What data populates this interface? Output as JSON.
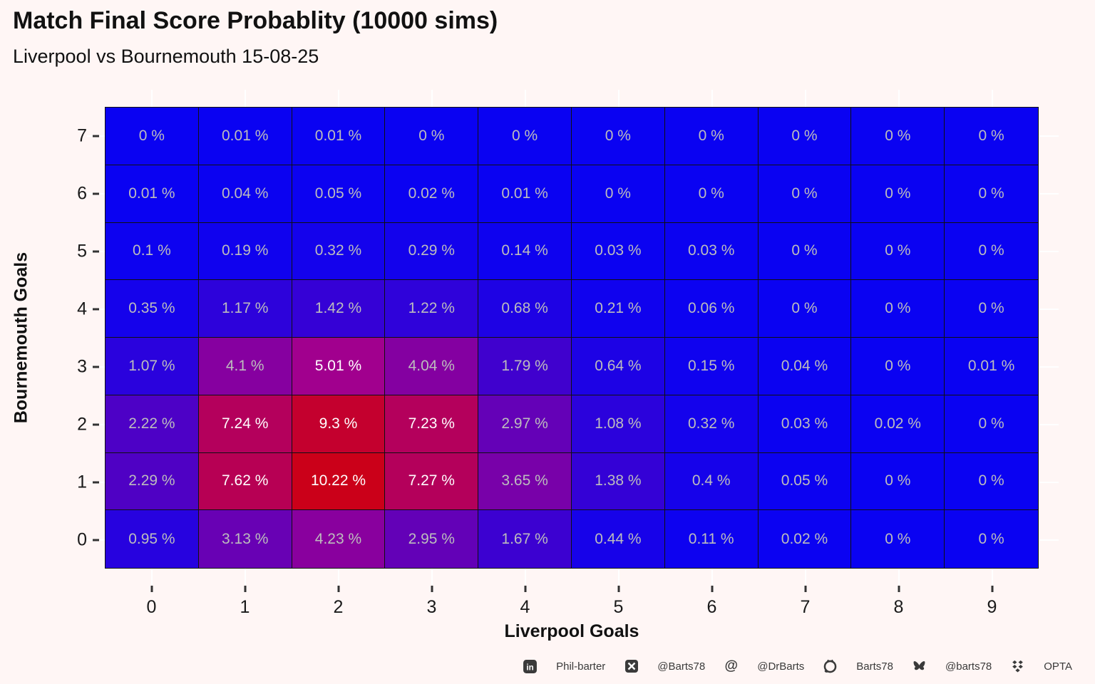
{
  "title": "Match Final Score Probablity (10000 sims)",
  "subtitle": "Liverpool vs Bournemouth 15-08-25",
  "chart_data": {
    "type": "heatmap",
    "title": "Match Final Score Probablity (10000 sims)",
    "subtitle": "Liverpool vs Bournemouth 15-08-25",
    "xlabel": "Liverpool Goals",
    "ylabel": "Bournemouth Goals",
    "x_categories": [
      "0",
      "1",
      "2",
      "3",
      "4",
      "5",
      "6",
      "7",
      "8",
      "9"
    ],
    "y_categories_top_to_bottom": [
      "7",
      "6",
      "5",
      "4",
      "3",
      "2",
      "1",
      "0"
    ],
    "values_unit": "%",
    "rows": [
      {
        "bournemouth_goals": "7",
        "values": [
          0,
          0.01,
          0.01,
          0,
          0,
          0,
          0,
          0,
          0,
          0
        ],
        "labels": [
          "0 %",
          "0.01 %",
          "0.01 %",
          "0 %",
          "0 %",
          "0 %",
          "0 %",
          "0 %",
          "0 %",
          "0 %"
        ]
      },
      {
        "bournemouth_goals": "6",
        "values": [
          0.01,
          0.04,
          0.05,
          0.02,
          0.01,
          0,
          0,
          0,
          0,
          0
        ],
        "labels": [
          "0.01 %",
          "0.04 %",
          "0.05 %",
          "0.02 %",
          "0.01 %",
          "0 %",
          "0 %",
          "0 %",
          "0 %",
          "0 %"
        ]
      },
      {
        "bournemouth_goals": "5",
        "values": [
          0.1,
          0.19,
          0.32,
          0.29,
          0.14,
          0.03,
          0.03,
          0,
          0,
          0
        ],
        "labels": [
          "0.1 %",
          "0.19 %",
          "0.32 %",
          "0.29 %",
          "0.14 %",
          "0.03 %",
          "0.03 %",
          "0 %",
          "0 %",
          "0 %"
        ]
      },
      {
        "bournemouth_goals": "4",
        "values": [
          0.35,
          1.17,
          1.42,
          1.22,
          0.68,
          0.21,
          0.06,
          0,
          0,
          0
        ],
        "labels": [
          "0.35 %",
          "1.17 %",
          "1.42 %",
          "1.22 %",
          "0.68 %",
          "0.21 %",
          "0.06 %",
          "0 %",
          "0 %",
          "0 %"
        ]
      },
      {
        "bournemouth_goals": "3",
        "values": [
          1.07,
          4.1,
          5.01,
          4.04,
          1.79,
          0.64,
          0.15,
          0.04,
          0,
          0.01
        ],
        "labels": [
          "1.07 %",
          "4.1 %",
          "5.01 %",
          "4.04 %",
          "1.79 %",
          "0.64 %",
          "0.15 %",
          "0.04 %",
          "0 %",
          "0.01 %"
        ]
      },
      {
        "bournemouth_goals": "2",
        "values": [
          2.22,
          7.24,
          9.3,
          7.23,
          2.97,
          1.08,
          0.32,
          0.03,
          0.02,
          0
        ],
        "labels": [
          "2.22 %",
          "7.24 %",
          "9.3 %",
          "7.23 %",
          "2.97 %",
          "1.08 %",
          "0.32 %",
          "0.03 %",
          "0.02 %",
          "0 %"
        ]
      },
      {
        "bournemouth_goals": "1",
        "values": [
          2.29,
          7.62,
          10.22,
          7.27,
          3.65,
          1.38,
          0.4,
          0.05,
          0,
          0
        ],
        "labels": [
          "2.29 %",
          "7.62 %",
          "10.22 %",
          "7.27 %",
          "3.65 %",
          "1.38 %",
          "0.4 %",
          "0.05 %",
          "0 %",
          "0 %"
        ]
      },
      {
        "bournemouth_goals": "0",
        "values": [
          0.95,
          3.13,
          4.23,
          2.95,
          1.67,
          0.44,
          0.11,
          0.02,
          0,
          0
        ],
        "labels": [
          "0.95 %",
          "3.13 %",
          "4.23 %",
          "2.95 %",
          "1.67 %",
          "0.44 %",
          "0.11 %",
          "0.02 %",
          "0 %",
          "0 %"
        ]
      }
    ],
    "color_scale": {
      "low": "#0A02F2",
      "mid": "#A4008C",
      "high": "#CB0019",
      "domain": [
        0,
        10.22
      ]
    },
    "cell_text_colors": {
      "default": "#BDBDBD",
      "high_value": "#FFFFFF",
      "white_threshold": 5
    },
    "grid": "white-stubs-outside-panel",
    "legend_position": "none"
  },
  "icons": {
    "linkedin_glyph": "in",
    "mastodon_glyph": "@"
  },
  "footer": {
    "items": [
      {
        "icon": "linkedin-icon",
        "text": "Phil-barter"
      },
      {
        "icon": "x-icon",
        "text": "@Barts78"
      },
      {
        "icon": "mastodon-icon",
        "text": "@DrBarts"
      },
      {
        "icon": "github-icon",
        "text": "Barts78"
      },
      {
        "icon": "bluesky-icon",
        "text": "@barts78"
      },
      {
        "icon": "dropbox-icon",
        "text": "OPTA"
      }
    ]
  },
  "colors": {
    "background": "#FFF6F5",
    "cell_border": "#101010",
    "tick_mark": "#333333",
    "gridline_stub": "#FFFFFF",
    "footer_text": "#3A3A3A"
  }
}
